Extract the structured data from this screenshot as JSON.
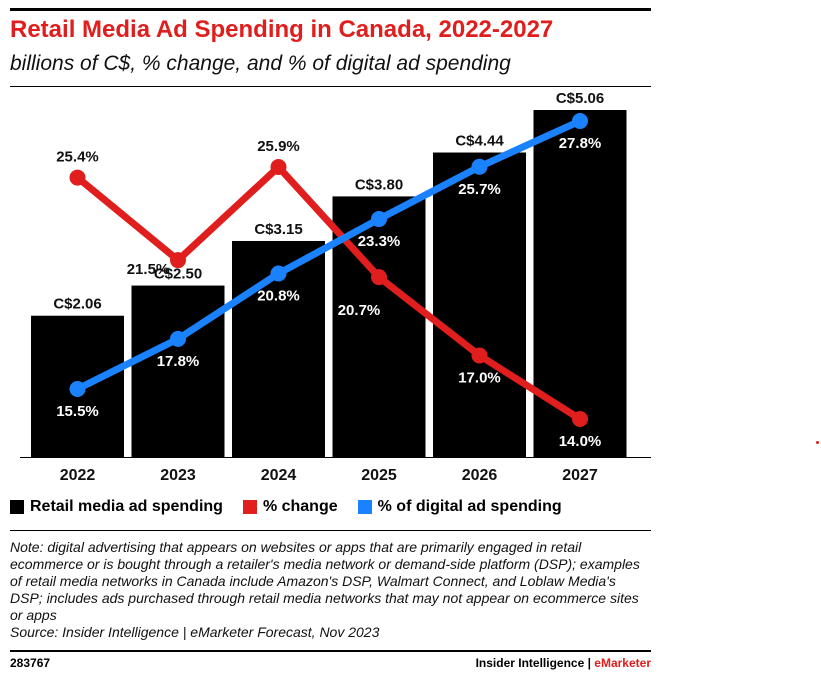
{
  "header": {
    "title": "Retail Media Ad Spending in Canada, 2022-2027",
    "subtitle": "billions of C$, % change, and % of digital ad spending"
  },
  "legend": {
    "items": [
      {
        "label": "Retail media ad spending",
        "color": "#000000"
      },
      {
        "label": "% change",
        "color": "#e01e1e"
      },
      {
        "label": "% of digital ad spending",
        "color": "#1a82ff"
      }
    ]
  },
  "footer": {
    "note": "Note: digital advertising that appears on websites or apps that are primarily engaged in retail ecommerce or is bought through a retailer's media network or demand-side platform (DSP); examples of retail media networks in Canada include Amazon's DSP, Walmart Connect, and Loblaw Media's DSP; includes ads purchased through retail media networks that may not appear on ecommerce sites or apps",
    "source": "Source: Insider Intelligence | eMarketer Forecast, Nov 2023",
    "chart_id": "283767",
    "brand_main": "Insider Intelligence | ",
    "brand_accent": "eMarketer"
  },
  "chart_data": {
    "type": "bar",
    "title": "Retail Media Ad Spending in Canada, 2022-2027",
    "subtitle": "billions of C$, % change, and % of digital ad spending",
    "categories": [
      "2022",
      "2023",
      "2024",
      "2025",
      "2026",
      "2027"
    ],
    "series": [
      {
        "name": "Retail media ad spending",
        "type": "bar",
        "color": "#000000",
        "values": [
          2.06,
          2.5,
          3.15,
          3.8,
          4.44,
          5.06
        ],
        "labels": [
          "C$2.06",
          "C$2.50",
          "C$3.15",
          "C$3.80",
          "C$4.44",
          "C$5.06"
        ]
      },
      {
        "name": "% change",
        "type": "line",
        "color": "#e01e1e",
        "values": [
          25.4,
          21.5,
          25.9,
          20.7,
          17.0,
          14.0
        ],
        "labels": [
          "25.4%",
          "21.5%",
          "25.9%",
          "20.7%",
          "17.0%",
          "14.0%"
        ]
      },
      {
        "name": "% of digital ad spending",
        "type": "line",
        "color": "#1a82ff",
        "values": [
          15.5,
          17.8,
          20.8,
          23.3,
          25.7,
          27.8
        ],
        "labels": [
          "15.5%",
          "17.8%",
          "20.8%",
          "23.3%",
          "25.7%",
          "27.8%"
        ]
      }
    ],
    "legend_position": "bottom",
    "grid": false
  }
}
